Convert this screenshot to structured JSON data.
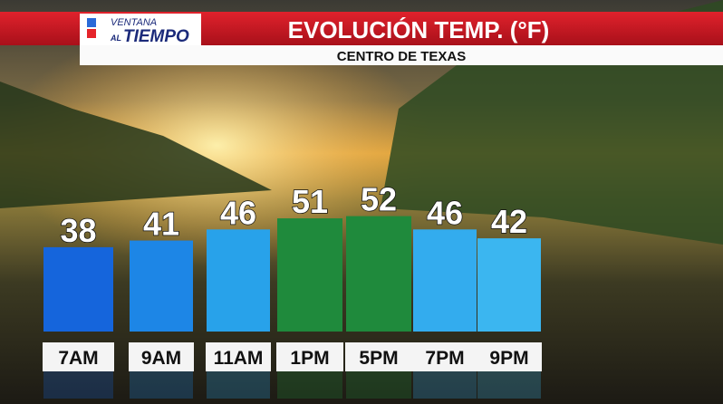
{
  "logo": {
    "top": "VENTANA",
    "small": "AL",
    "main": "TIEMPO"
  },
  "chart_data": {
    "type": "bar",
    "title": "EVOLUCIÓN TEMP. (°F)",
    "subtitle": "CENTRO DE TEXAS",
    "categories": [
      "7AM",
      "9AM",
      "11AM",
      "1PM",
      "5PM",
      "7PM",
      "9PM"
    ],
    "values": [
      38,
      41,
      46,
      51,
      52,
      46,
      42
    ],
    "colors": [
      "#1565dc",
      "#1d86e6",
      "#28a2ea",
      "#1f8a3c",
      "#1f8a3c",
      "#33acee",
      "#3bb6f0"
    ]
  }
}
